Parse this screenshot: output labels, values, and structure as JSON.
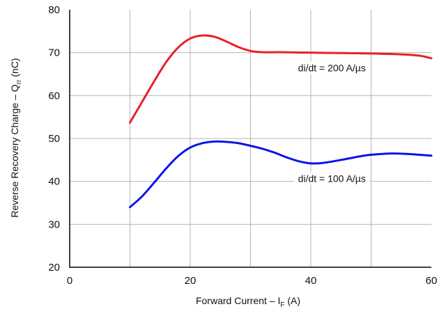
{
  "chart_data": {
    "type": "line",
    "xlabel": {
      "main": "Forward Current – I",
      "sub": "F",
      "unit": " (A)"
    },
    "ylabel": {
      "main": "Reverse Recovery Charge – Q",
      "sub": "rr",
      "unit": " (nC)"
    },
    "xlim": [
      0,
      60
    ],
    "ylim": [
      20,
      80
    ],
    "xticks": [
      0,
      20,
      40,
      60
    ],
    "yticks": [
      20,
      30,
      40,
      50,
      60,
      70,
      80
    ],
    "grid": true,
    "series": [
      {
        "name": "di/dt = 200 A/µs",
        "color": "#e8202a",
        "x": [
          10,
          12,
          14,
          16,
          18,
          20,
          22,
          24,
          26,
          28,
          30,
          32,
          35,
          40,
          45,
          50,
          55,
          58,
          60
        ],
        "y": [
          53.7,
          58.5,
          63.3,
          67.8,
          71.2,
          73.3,
          74.0,
          73.7,
          72.6,
          71.3,
          70.4,
          70.1,
          70.1,
          70.0,
          69.9,
          69.8,
          69.6,
          69.3,
          68.7
        ]
      },
      {
        "name": "di/dt = 100 A/µs",
        "color": "#0a14e6",
        "x": [
          10,
          12,
          14,
          16,
          18,
          20,
          22,
          24,
          26,
          28,
          30,
          32,
          34,
          36,
          38,
          40,
          42,
          45,
          48,
          50,
          53,
          56,
          58,
          60
        ],
        "y": [
          34.0,
          36.5,
          39.7,
          43.0,
          45.9,
          47.9,
          48.9,
          49.3,
          49.2,
          48.9,
          48.3,
          47.6,
          46.7,
          45.6,
          44.7,
          44.2,
          44.3,
          45.0,
          45.8,
          46.2,
          46.5,
          46.4,
          46.2,
          46.0
        ]
      }
    ],
    "annotations": [
      {
        "text": "di/dt = 200 A/µs",
        "x": 43.5,
        "y": 66.5
      },
      {
        "text": "di/dt = 100 A/µs",
        "x": 43.5,
        "y": 40.7
      }
    ]
  }
}
